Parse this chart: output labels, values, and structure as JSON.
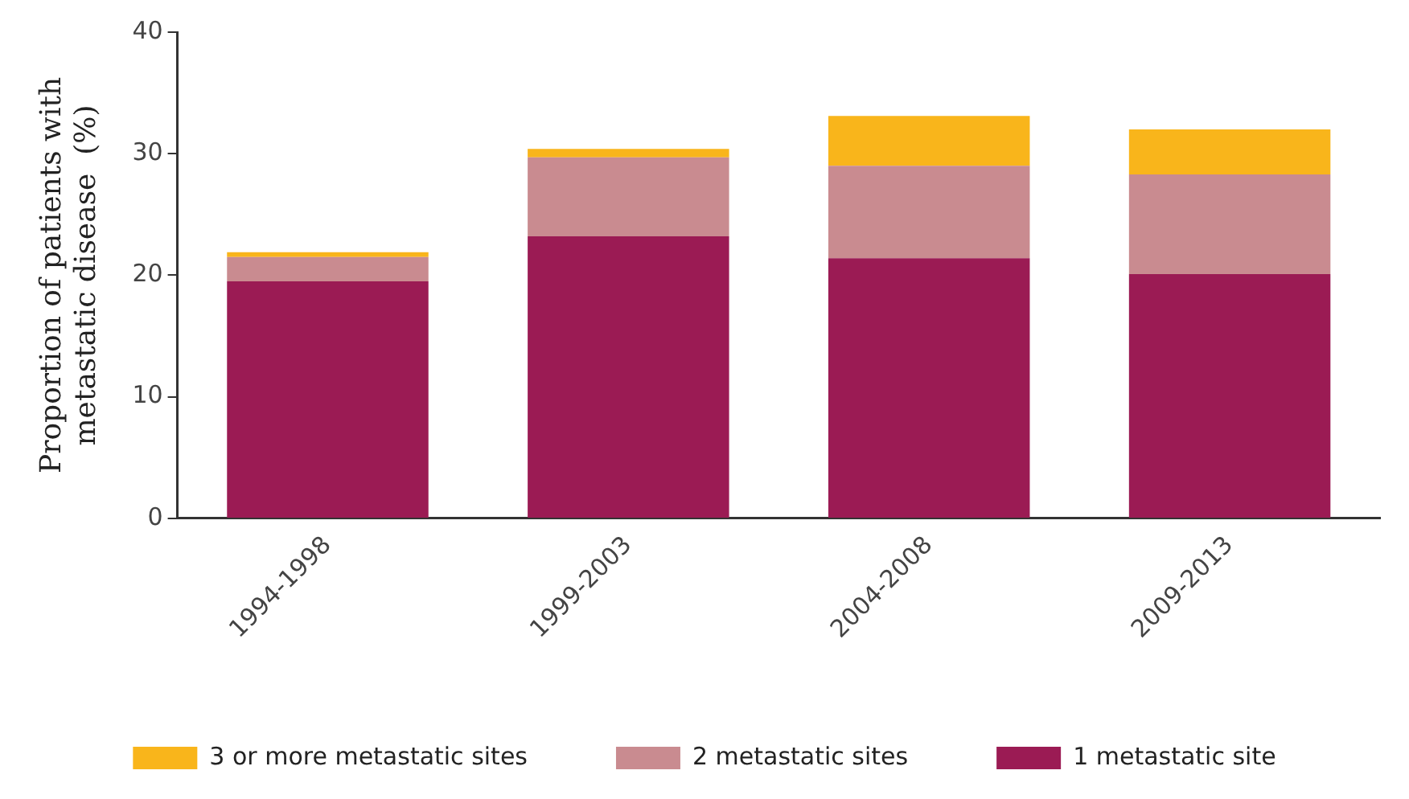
{
  "chart_data": {
    "type": "bar",
    "stacked": true,
    "ylabel": "Proportion of patients with metastatic disease  (%)",
    "categories": [
      "1994-1998",
      "1999-2003",
      "2004-2008",
      "2009-2013"
    ],
    "series": [
      {
        "name": "1 metastatic site",
        "color": "#9b1b54",
        "values": [
          19.5,
          23.2,
          21.4,
          20.1
        ]
      },
      {
        "name": "2 metastatic sites",
        "color": "#c98b90",
        "values": [
          2.0,
          6.5,
          7.6,
          8.2
        ]
      },
      {
        "name": "3 or more metastatic sites",
        "color": "#f9b51b",
        "values": [
          0.4,
          0.7,
          4.1,
          3.7
        ]
      }
    ],
    "ylim": [
      0,
      40
    ],
    "yticks": [
      0,
      10,
      20,
      30,
      40
    ],
    "grid": false,
    "legend": "bottom"
  }
}
